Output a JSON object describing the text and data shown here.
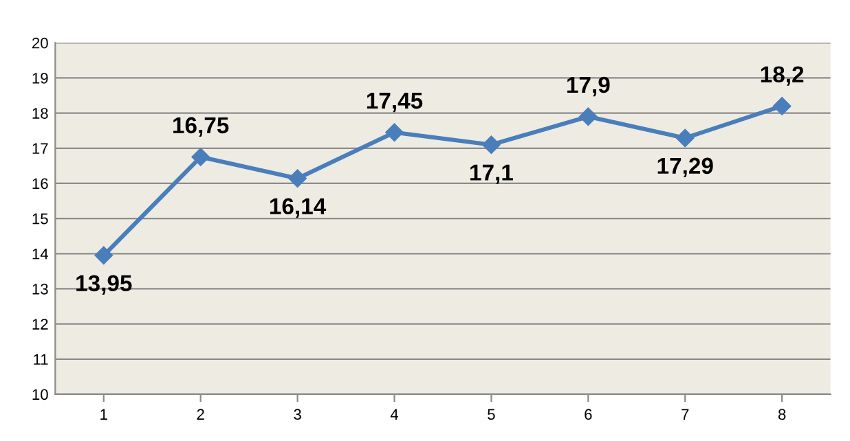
{
  "chart_data": {
    "type": "line",
    "categories": [
      "1",
      "2",
      "3",
      "4",
      "5",
      "6",
      "7",
      "8"
    ],
    "series": [
      {
        "color": "#4a7ebb",
        "values": [
          13.95,
          16.75,
          16.14,
          17.45,
          17.1,
          17.9,
          17.29,
          18.2
        ],
        "value_labels": [
          "13,95",
          "16,75",
          "16,14",
          "17,45",
          "17,1",
          "17,9",
          "17,29",
          "18,2"
        ]
      }
    ],
    "ylim": [
      10,
      20
    ],
    "yticks": [
      10,
      11,
      12,
      13,
      14,
      15,
      16,
      17,
      18,
      19,
      20
    ],
    "grid": "y",
    "marker": "diamond",
    "line_style": "solid"
  }
}
